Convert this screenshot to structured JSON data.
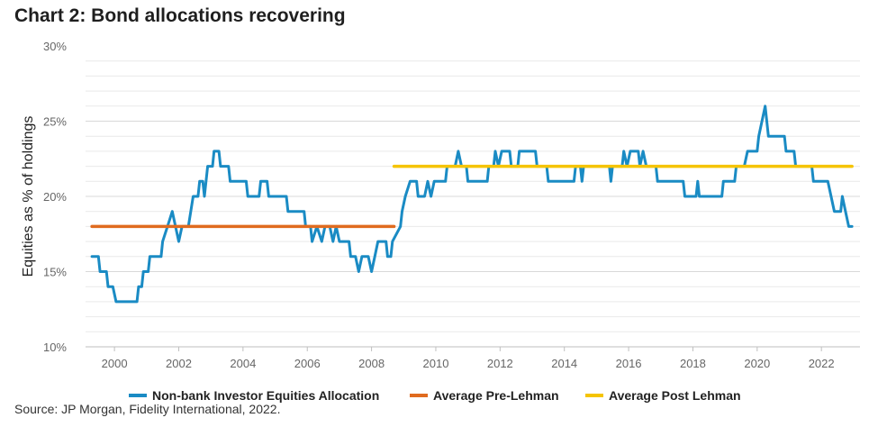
{
  "title": "Chart 2: Bond allocations recovering",
  "source": "Source: JP Morgan, Fidelity International, 2022.",
  "chart_data": {
    "type": "line",
    "title": "Chart 2: Bond allocations recovering",
    "xlabel": "",
    "ylabel": "Equities as % of holdings",
    "xlim": [
      1999.1,
      2023.2
    ],
    "ylim": [
      10,
      30
    ],
    "x_ticks": [
      2000,
      2002,
      2004,
      2006,
      2008,
      2010,
      2012,
      2014,
      2016,
      2018,
      2020,
      2022
    ],
    "x_tick_labels": [
      "2000",
      "2002",
      "2004",
      "2006",
      "2008",
      "2010",
      "2012",
      "2014",
      "2016",
      "2018",
      "2020",
      "2022"
    ],
    "y_ticks": [
      10,
      15,
      20,
      25,
      30
    ],
    "y_tick_labels": [
      "10%",
      "15%",
      "20%",
      "25%",
      "30%"
    ],
    "grid": true,
    "legend_position": "bottom",
    "series": [
      {
        "name": "Non-bank Investor Equities Allocation",
        "color": "#1a8bc4",
        "points": [
          [
            1999.3,
            16
          ],
          [
            1999.5,
            16
          ],
          [
            1999.55,
            15
          ],
          [
            1999.75,
            15
          ],
          [
            1999.8,
            14
          ],
          [
            1999.95,
            14
          ],
          [
            2000.0,
            13.5
          ],
          [
            2000.05,
            13
          ],
          [
            2000.7,
            13
          ],
          [
            2000.75,
            14
          ],
          [
            2000.85,
            14
          ],
          [
            2000.9,
            15
          ],
          [
            2001.05,
            15
          ],
          [
            2001.1,
            16
          ],
          [
            2001.45,
            16
          ],
          [
            2001.5,
            17
          ],
          [
            2001.65,
            18
          ],
          [
            2001.8,
            19
          ],
          [
            2001.9,
            18
          ],
          [
            2002.0,
            17
          ],
          [
            2002.1,
            18
          ],
          [
            2002.3,
            18
          ],
          [
            2002.45,
            20
          ],
          [
            2002.6,
            20
          ],
          [
            2002.65,
            21
          ],
          [
            2002.75,
            21
          ],
          [
            2002.8,
            20
          ],
          [
            2002.9,
            22
          ],
          [
            2003.05,
            22
          ],
          [
            2003.1,
            23
          ],
          [
            2003.25,
            23
          ],
          [
            2003.3,
            22
          ],
          [
            2003.55,
            22
          ],
          [
            2003.6,
            21
          ],
          [
            2004.1,
            21
          ],
          [
            2004.15,
            20
          ],
          [
            2004.5,
            20
          ],
          [
            2004.55,
            21
          ],
          [
            2004.75,
            21
          ],
          [
            2004.8,
            20
          ],
          [
            2005.35,
            20
          ],
          [
            2005.4,
            19
          ],
          [
            2005.9,
            19
          ],
          [
            2005.95,
            18
          ],
          [
            2006.1,
            18
          ],
          [
            2006.15,
            17
          ],
          [
            2006.3,
            18
          ],
          [
            2006.45,
            17
          ],
          [
            2006.55,
            18
          ],
          [
            2006.7,
            18
          ],
          [
            2006.8,
            17
          ],
          [
            2006.9,
            18
          ],
          [
            2007.0,
            17
          ],
          [
            2007.3,
            17
          ],
          [
            2007.35,
            16
          ],
          [
            2007.5,
            16
          ],
          [
            2007.6,
            15
          ],
          [
            2007.7,
            16
          ],
          [
            2007.9,
            16
          ],
          [
            2008.0,
            15
          ],
          [
            2008.1,
            16
          ],
          [
            2008.2,
            17
          ],
          [
            2008.45,
            17
          ],
          [
            2008.5,
            16
          ],
          [
            2008.6,
            16
          ],
          [
            2008.65,
            17
          ],
          [
            2008.9,
            18
          ],
          [
            2008.95,
            19
          ],
          [
            2009.05,
            20
          ],
          [
            2009.2,
            21
          ],
          [
            2009.4,
            21
          ],
          [
            2009.45,
            20
          ],
          [
            2009.65,
            20
          ],
          [
            2009.75,
            21
          ],
          [
            2009.85,
            20
          ],
          [
            2009.95,
            21
          ],
          [
            2010.3,
            21
          ],
          [
            2010.35,
            22
          ],
          [
            2010.6,
            22
          ],
          [
            2010.7,
            23
          ],
          [
            2010.8,
            22
          ],
          [
            2010.95,
            22
          ],
          [
            2011.0,
            21
          ],
          [
            2011.6,
            21
          ],
          [
            2011.65,
            22
          ],
          [
            2011.8,
            22
          ],
          [
            2011.85,
            23
          ],
          [
            2011.95,
            22
          ],
          [
            2012.05,
            23
          ],
          [
            2012.3,
            23
          ],
          [
            2012.35,
            22
          ],
          [
            2012.55,
            22
          ],
          [
            2012.6,
            23
          ],
          [
            2013.1,
            23
          ],
          [
            2013.15,
            22
          ],
          [
            2013.45,
            22
          ],
          [
            2013.5,
            21
          ],
          [
            2014.3,
            21
          ],
          [
            2014.35,
            22
          ],
          [
            2014.5,
            22
          ],
          [
            2014.55,
            21
          ],
          [
            2014.6,
            22
          ],
          [
            2015.4,
            22
          ],
          [
            2015.45,
            21
          ],
          [
            2015.5,
            22
          ],
          [
            2015.8,
            22
          ],
          [
            2015.85,
            23
          ],
          [
            2015.95,
            22
          ],
          [
            2016.05,
            23
          ],
          [
            2016.3,
            23
          ],
          [
            2016.35,
            22
          ],
          [
            2016.45,
            23
          ],
          [
            2016.55,
            22
          ],
          [
            2016.85,
            22
          ],
          [
            2016.9,
            21
          ],
          [
            2017.7,
            21
          ],
          [
            2017.75,
            20
          ],
          [
            2018.1,
            20
          ],
          [
            2018.15,
            21
          ],
          [
            2018.2,
            20
          ],
          [
            2018.9,
            20
          ],
          [
            2018.95,
            21
          ],
          [
            2019.3,
            21
          ],
          [
            2019.35,
            22
          ],
          [
            2019.6,
            22
          ],
          [
            2019.7,
            23
          ],
          [
            2020.0,
            23
          ],
          [
            2020.05,
            24
          ],
          [
            2020.25,
            26
          ],
          [
            2020.3,
            25
          ],
          [
            2020.35,
            24
          ],
          [
            2020.85,
            24
          ],
          [
            2020.9,
            23
          ],
          [
            2021.15,
            23
          ],
          [
            2021.2,
            22
          ],
          [
            2021.7,
            22
          ],
          [
            2021.75,
            21
          ],
          [
            2022.2,
            21
          ],
          [
            2022.3,
            20
          ],
          [
            2022.4,
            19
          ],
          [
            2022.6,
            19
          ],
          [
            2022.65,
            20
          ],
          [
            2022.75,
            19
          ],
          [
            2022.85,
            18
          ],
          [
            2022.95,
            18
          ]
        ]
      },
      {
        "name": "Average Pre-Lehman",
        "color": "#e06b1f",
        "points": [
          [
            1999.3,
            18
          ],
          [
            2008.7,
            18
          ]
        ]
      },
      {
        "name": "Average Post Lehman",
        "color": "#f5c400",
        "points": [
          [
            2008.7,
            22
          ],
          [
            2022.95,
            22
          ]
        ]
      }
    ]
  }
}
